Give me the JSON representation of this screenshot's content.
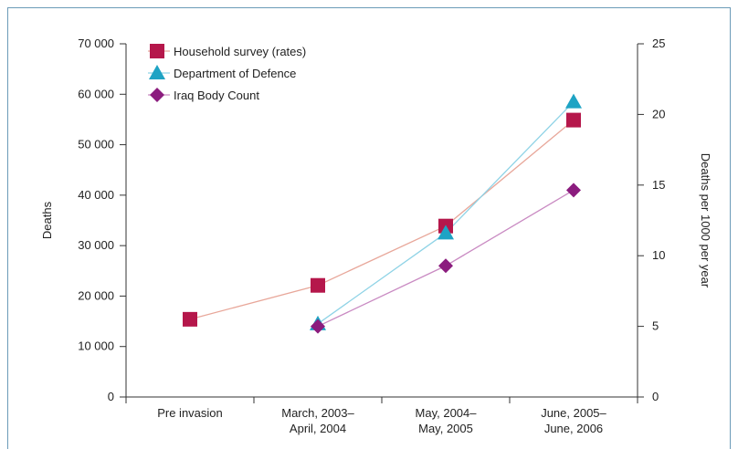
{
  "chart_data": {
    "type": "line",
    "categories": [
      [
        "Pre invasion"
      ],
      [
        "March,  2003–",
        "April, 2004"
      ],
      [
        "May, 2004–",
        "May, 2005"
      ],
      [
        "June, 2005–",
        "June, 2006"
      ]
    ],
    "ylabel": "Deaths",
    "y2label": "Deaths per 1000 per year",
    "ylim": [
      0,
      70000
    ],
    "y2lim": [
      0,
      25
    ],
    "yticks": [
      "0",
      "10 000",
      "20 000",
      "30 000",
      "40 000",
      "50 000",
      "60 000",
      "70 000"
    ],
    "y2ticks": [
      "0",
      "5",
      "10",
      "15",
      "20",
      "25"
    ],
    "legend_position": "top-left",
    "series": [
      {
        "name": "Household survey (rates)",
        "axis": "right",
        "marker": "square",
        "color": "#b5174b",
        "line_color": "#e8a79a",
        "values": [
          5.5,
          7.9,
          12.1,
          19.6
        ]
      },
      {
        "name": "Department of Defence",
        "axis": "left",
        "marker": "triangle",
        "color": "#1ea3c4",
        "line_color": "#8fd3e6",
        "values": [
          null,
          14500,
          32500,
          58500
        ]
      },
      {
        "name": "Iraq Body Count",
        "axis": "left",
        "marker": "diamond",
        "color": "#8b1c7e",
        "line_color": "#c98ac2",
        "values": [
          null,
          14000,
          26000,
          41000
        ]
      }
    ]
  }
}
